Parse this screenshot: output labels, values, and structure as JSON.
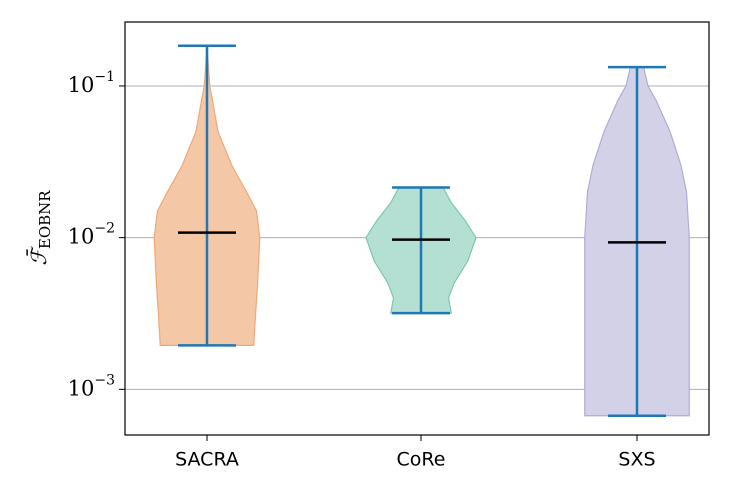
{
  "chart_data": {
    "type": "violin",
    "ylabel": {
      "main": "ℱ̄",
      "sub": "EOBNR"
    },
    "categories": [
      "SACRA",
      "CoRe",
      "SXS"
    ],
    "log_y": true,
    "grid": true,
    "ylim": [
      0.0005,
      0.264
    ],
    "yticks": [
      {
        "value": 0.001,
        "label": "10",
        "exponent": "−3"
      },
      {
        "value": 0.01,
        "label": "10",
        "exponent": "−2"
      },
      {
        "value": 0.1,
        "label": "10",
        "exponent": "−1"
      }
    ],
    "bar_color": "#1f77b4",
    "median_color": "#000000",
    "series": [
      {
        "fill": "#f4c7a7",
        "edge": "#f0a878",
        "min": 0.00195,
        "median": 0.0108,
        "max": 0.184,
        "density": {
          "y": [
            0.00195,
            0.003,
            0.005,
            0.01,
            0.015,
            0.02,
            0.03,
            0.05,
            0.08,
            0.1,
            0.184
          ],
          "width": [
            0.85,
            0.88,
            0.92,
            0.96,
            0.9,
            0.72,
            0.45,
            0.2,
            0.1,
            0.05,
            0
          ]
        }
      },
      {
        "fill": "#b3e0d2",
        "edge": "#7cc8ad",
        "min": 0.00318,
        "median": 0.0097,
        "max": 0.0214,
        "density": {
          "y": [
            0.00318,
            0.004,
            0.005,
            0.007,
            0.01,
            0.013,
            0.017,
            0.0214
          ],
          "width": [
            0.55,
            0.5,
            0.6,
            0.85,
            1.0,
            0.8,
            0.55,
            0.4
          ]
        }
      },
      {
        "fill": "#d3d1e7",
        "edge": "#b0acd6",
        "min": 0.00067,
        "median": 0.0093,
        "max": 0.133,
        "density": {
          "y": [
            0.00067,
            0.001,
            0.003,
            0.01,
            0.02,
            0.03,
            0.05,
            0.08,
            0.1,
            0.133
          ],
          "width": [
            0.95,
            0.95,
            0.95,
            0.95,
            0.9,
            0.8,
            0.6,
            0.35,
            0.2,
            0.12
          ]
        }
      }
    ]
  }
}
